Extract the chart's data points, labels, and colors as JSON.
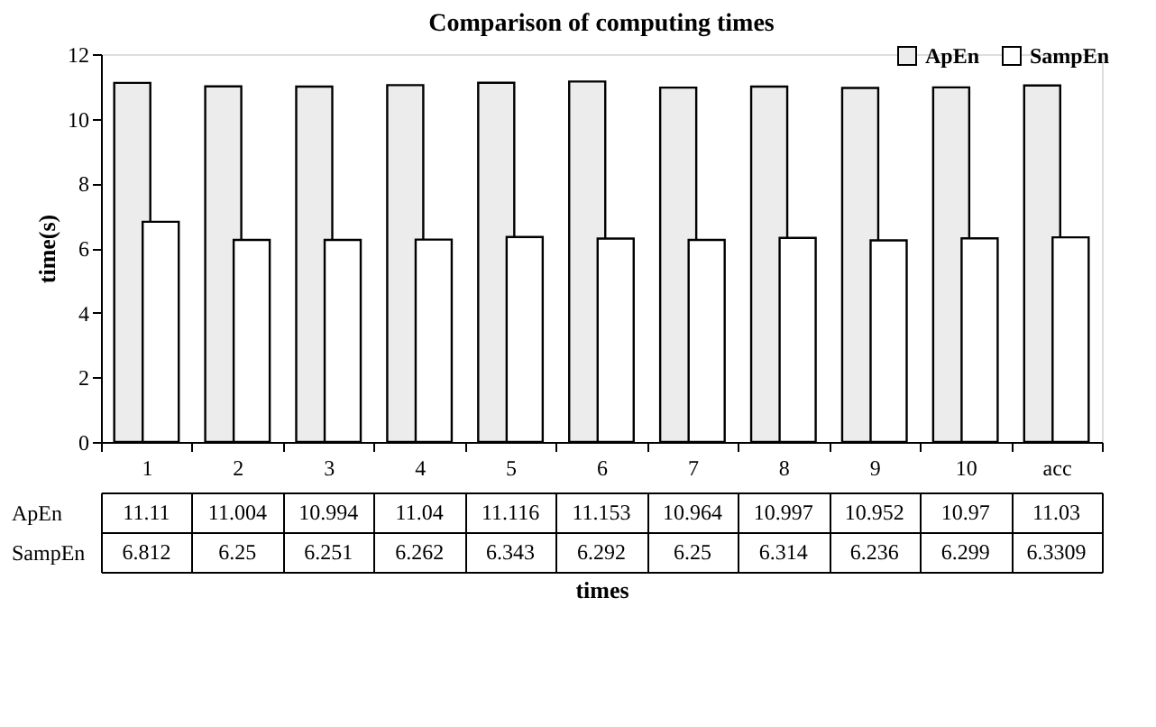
{
  "chart_data": {
    "type": "bar",
    "title": "Comparison of computing times",
    "xlabel": "times",
    "ylabel": "time(s)",
    "categories": [
      "1",
      "2",
      "3",
      "4",
      "5",
      "6",
      "7",
      "8",
      "9",
      "10",
      "acc"
    ],
    "series": [
      {
        "name": "ApEn",
        "color": "#ececec",
        "values": [
          11.11,
          11.004,
          10.994,
          11.04,
          11.116,
          11.153,
          10.964,
          10.997,
          10.952,
          10.97,
          11.03
        ]
      },
      {
        "name": "SampEn",
        "color": "#ffffff",
        "values": [
          6.812,
          6.25,
          6.251,
          6.262,
          6.343,
          6.292,
          6.25,
          6.314,
          6.236,
          6.299,
          6.3309
        ]
      }
    ],
    "ylim": [
      0,
      12
    ],
    "yticks": [
      0,
      2,
      4,
      6,
      8,
      10,
      12
    ],
    "legend": "top right",
    "data_labels": true
  }
}
